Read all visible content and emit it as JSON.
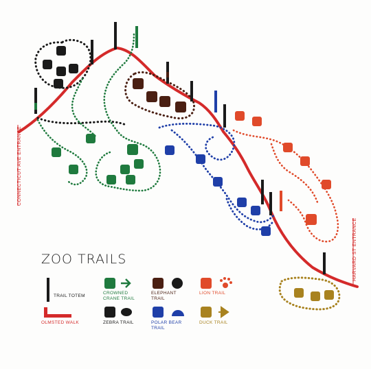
{
  "map": {
    "title": "ZOO TRAILS",
    "entrances": {
      "west": "CONNECTICUT AVE ENTRANCE",
      "east": "HARVARD ST ENTRANCE"
    }
  },
  "legend": {
    "trail_totem": "TRAIL TOTEM",
    "olmsted_walk": "OLMSTED WALK",
    "crowned_crane": "CROWNED CRANE TRAIL",
    "zebra": "ZEBRA TRAIL",
    "elephant": "ELEPHANT TRAIL",
    "polar_bear": "POLAR BEAR TRAIL",
    "lion": "LION TRAIL",
    "duck": "DUCK TRAIL"
  },
  "colors": {
    "olmsted": "#d42a2a",
    "crane": "#1f7a3e",
    "zebra": "#1a1a1a",
    "elephant": "#4a1f12",
    "polar_bear": "#1f3fa8",
    "lion": "#e04a2a",
    "duck": "#a8821f"
  },
  "icons": {
    "crane": [
      "crowned-crane-icon",
      "arrow-right-icon"
    ],
    "zebra": [
      "zebra-icon",
      "oval-shape-icon"
    ],
    "elephant": [
      "elephant-icon",
      "black-circle-icon"
    ],
    "polar_bear": [
      "polar-bear-icon",
      "half-sun-icon"
    ],
    "lion": [
      "lion-icon",
      "paw-print-icon"
    ],
    "duck": [
      "duck-icon",
      "triangle-arrow-icon"
    ]
  }
}
